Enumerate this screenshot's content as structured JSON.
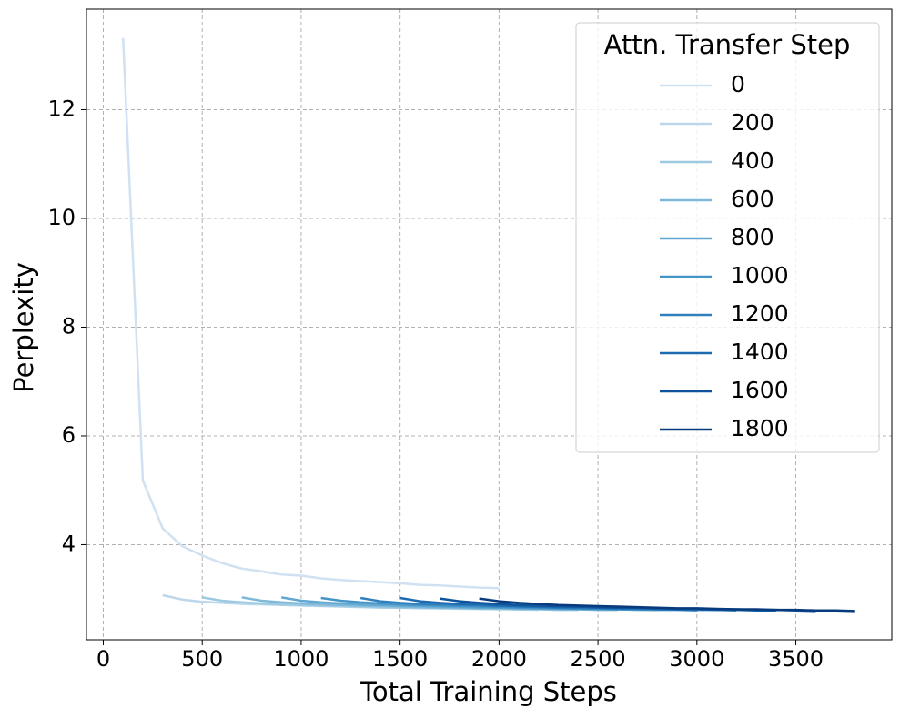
{
  "chart_data": {
    "type": "line",
    "xlabel": "Total Training Steps",
    "ylabel": "Perplexity",
    "legend_title": "Attn. Transfer Step",
    "legend": "upper right",
    "grid": true,
    "xlim": [
      -85,
      3985
    ],
    "xticks": [
      0,
      500,
      1000,
      1500,
      2000,
      2500,
      3000,
      3500
    ],
    "ylim": [
      2.25,
      13.85
    ],
    "yticks": [
      4,
      6,
      8,
      10,
      12
    ],
    "series": [
      {
        "name": "0",
        "color": "#d0e1f2",
        "x": [
          100,
          200,
          300,
          400,
          500,
          600,
          700,
          800,
          900,
          1000,
          1100,
          1200,
          1300,
          1400,
          1500,
          1600,
          1700,
          1800,
          1900,
          2000
        ],
        "values": [
          13.32,
          5.18,
          4.3,
          3.97,
          3.8,
          3.66,
          3.56,
          3.51,
          3.45,
          3.43,
          3.38,
          3.35,
          3.33,
          3.31,
          3.29,
          3.26,
          3.25,
          3.23,
          3.21,
          3.2
        ]
      },
      {
        "name": "200",
        "color": "#bcd7eb",
        "x": [
          300,
          400,
          500,
          600,
          700,
          800,
          900,
          1000,
          1100,
          1200,
          1300,
          1400,
          1500,
          1600,
          1700,
          1800,
          1900,
          2000,
          2100,
          2200
        ],
        "values": [
          3.07,
          2.99,
          2.95,
          2.93,
          2.91,
          2.9,
          2.89,
          2.88,
          2.87,
          2.86,
          2.85,
          2.84,
          2.84,
          2.83,
          2.83,
          2.82,
          2.82,
          2.81,
          2.81,
          2.8
        ]
      },
      {
        "name": "400",
        "color": "#9ecae1",
        "x": [
          500,
          600,
          700,
          800,
          900,
          1000,
          1100,
          1200,
          1300,
          1400,
          1500,
          1600,
          1700,
          1800,
          1900,
          2000,
          2100,
          2200,
          2300,
          2400
        ],
        "values": [
          3.03,
          2.97,
          2.94,
          2.92,
          2.9,
          2.89,
          2.88,
          2.87,
          2.86,
          2.85,
          2.84,
          2.84,
          2.83,
          2.83,
          2.82,
          2.82,
          2.81,
          2.81,
          2.8,
          2.8
        ]
      },
      {
        "name": "600",
        "color": "#7fb9da",
        "x": [
          700,
          800,
          900,
          1000,
          1100,
          1200,
          1300,
          1400,
          1500,
          1600,
          1700,
          1800,
          1900,
          2000,
          2100,
          2200,
          2300,
          2400,
          2500,
          2600
        ],
        "values": [
          3.03,
          2.97,
          2.94,
          2.92,
          2.9,
          2.89,
          2.88,
          2.87,
          2.86,
          2.85,
          2.84,
          2.84,
          2.83,
          2.83,
          2.82,
          2.82,
          2.81,
          2.81,
          2.8,
          2.8
        ]
      },
      {
        "name": "800",
        "color": "#61a7d2",
        "x": [
          900,
          1000,
          1100,
          1200,
          1300,
          1400,
          1500,
          1600,
          1700,
          1800,
          1900,
          2000,
          2100,
          2200,
          2300,
          2400,
          2500,
          2600,
          2700,
          2800
        ],
        "values": [
          3.03,
          2.97,
          2.94,
          2.92,
          2.9,
          2.89,
          2.88,
          2.87,
          2.86,
          2.85,
          2.84,
          2.84,
          2.83,
          2.83,
          2.82,
          2.82,
          2.81,
          2.81,
          2.8,
          2.8
        ]
      },
      {
        "name": "1000",
        "color": "#4594c7",
        "x": [
          1100,
          1200,
          1300,
          1400,
          1500,
          1600,
          1700,
          1800,
          1900,
          2000,
          2100,
          2200,
          2300,
          2400,
          2500,
          2600,
          2700,
          2800,
          2900,
          3000
        ],
        "values": [
          3.02,
          2.97,
          2.94,
          2.92,
          2.9,
          2.89,
          2.88,
          2.87,
          2.86,
          2.85,
          2.84,
          2.83,
          2.83,
          2.82,
          2.82,
          2.81,
          2.81,
          2.8,
          2.8,
          2.79
        ]
      },
      {
        "name": "1200",
        "color": "#3080bd",
        "x": [
          1300,
          1400,
          1500,
          1600,
          1700,
          1800,
          1900,
          2000,
          2100,
          2200,
          2300,
          2400,
          2500,
          2600,
          2700,
          2800,
          2900,
          3000,
          3100,
          3200
        ],
        "values": [
          3.02,
          2.96,
          2.93,
          2.91,
          2.9,
          2.89,
          2.88,
          2.87,
          2.86,
          2.85,
          2.84,
          2.83,
          2.83,
          2.82,
          2.82,
          2.81,
          2.81,
          2.8,
          2.8,
          2.79
        ]
      },
      {
        "name": "1400",
        "color": "#1c6aaf",
        "x": [
          1500,
          1600,
          1700,
          1800,
          1900,
          2000,
          2100,
          2200,
          2300,
          2400,
          2500,
          2600,
          2700,
          2800,
          2900,
          3000,
          3100,
          3200,
          3300,
          3400
        ],
        "values": [
          3.02,
          2.96,
          2.93,
          2.91,
          2.9,
          2.88,
          2.87,
          2.86,
          2.85,
          2.85,
          2.84,
          2.83,
          2.83,
          2.82,
          2.81,
          2.81,
          2.8,
          2.8,
          2.79,
          2.79
        ]
      },
      {
        "name": "1600",
        "color": "#0e539b",
        "x": [
          1700,
          1800,
          1900,
          2000,
          2100,
          2200,
          2300,
          2400,
          2500,
          2600,
          2700,
          2800,
          2900,
          3000,
          3100,
          3200,
          3300,
          3400,
          3500,
          3600
        ],
        "values": [
          3.01,
          2.96,
          2.93,
          2.91,
          2.89,
          2.88,
          2.87,
          2.86,
          2.85,
          2.84,
          2.84,
          2.83,
          2.82,
          2.82,
          2.81,
          2.81,
          2.8,
          2.8,
          2.79,
          2.78
        ]
      },
      {
        "name": "1800",
        "color": "#083b7d",
        "x": [
          1900,
          2000,
          2100,
          2200,
          2300,
          2400,
          2500,
          2600,
          2700,
          2800,
          2900,
          3000,
          3100,
          3200,
          3300,
          3400,
          3500,
          3600,
          3700,
          3800
        ],
        "values": [
          3.01,
          2.96,
          2.93,
          2.91,
          2.89,
          2.88,
          2.87,
          2.86,
          2.85,
          2.84,
          2.83,
          2.83,
          2.82,
          2.81,
          2.81,
          2.8,
          2.8,
          2.79,
          2.79,
          2.78
        ]
      }
    ]
  }
}
